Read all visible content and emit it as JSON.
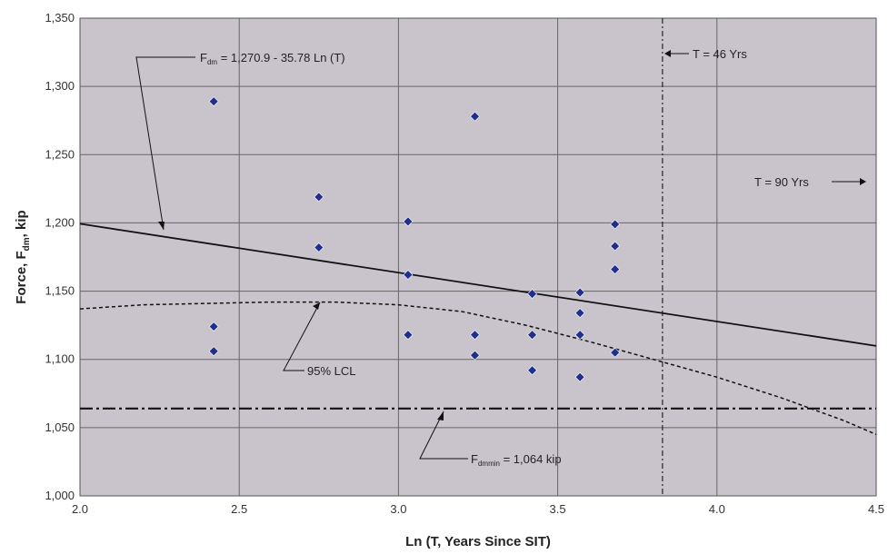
{
  "chart_data": {
    "type": "scatter",
    "xlabel": "Ln (T, Years Since SIT)",
    "ylabel": {
      "pre": "Force, F",
      "sub": "dm",
      "post": ", kip"
    },
    "xlim": [
      2.0,
      4.5
    ],
    "ylim": [
      1000,
      1350
    ],
    "x_ticks": [
      2.0,
      2.5,
      3.0,
      3.5,
      4.0,
      4.5
    ],
    "x_tick_labels": [
      "2.0",
      "2.5",
      "3.0",
      "3.5",
      "4.0",
      "4.5"
    ],
    "y_ticks": [
      1000,
      1050,
      1100,
      1150,
      1200,
      1250,
      1300,
      1350
    ],
    "y_tick_labels": [
      "1,000",
      "1,050",
      "1,100",
      "1,150",
      "1,200",
      "1,250",
      "1,300",
      "1,350"
    ],
    "grid": true,
    "plot_background": "#c9c4cc",
    "marker_color": "#1f2f8a",
    "points": [
      {
        "x": 2.42,
        "y": 1289
      },
      {
        "x": 2.42,
        "y": 1124
      },
      {
        "x": 2.42,
        "y": 1106
      },
      {
        "x": 2.75,
        "y": 1219
      },
      {
        "x": 2.75,
        "y": 1182
      },
      {
        "x": 3.03,
        "y": 1201
      },
      {
        "x": 3.03,
        "y": 1162
      },
      {
        "x": 3.03,
        "y": 1118
      },
      {
        "x": 3.24,
        "y": 1278
      },
      {
        "x": 3.24,
        "y": 1118
      },
      {
        "x": 3.24,
        "y": 1103
      },
      {
        "x": 3.42,
        "y": 1148
      },
      {
        "x": 3.42,
        "y": 1118
      },
      {
        "x": 3.42,
        "y": 1092
      },
      {
        "x": 3.57,
        "y": 1149
      },
      {
        "x": 3.57,
        "y": 1134
      },
      {
        "x": 3.57,
        "y": 1118
      },
      {
        "x": 3.57,
        "y": 1087
      },
      {
        "x": 3.68,
        "y": 1199
      },
      {
        "x": 3.68,
        "y": 1183
      },
      {
        "x": 3.68,
        "y": 1166
      },
      {
        "x": 3.68,
        "y": 1105
      }
    ],
    "regression": {
      "intercept": 1270.9,
      "slope": -35.78,
      "x": [
        2.0,
        4.5
      ]
    },
    "lcl_curve": {
      "x": [
        2.0,
        2.2,
        2.4,
        2.6,
        2.8,
        3.0,
        3.2,
        3.4,
        3.6,
        3.8,
        4.0,
        4.2,
        4.4,
        4.5
      ],
      "y": [
        1137,
        1140,
        1141,
        1142,
        1142,
        1140,
        1135,
        1125,
        1113,
        1100,
        1087,
        1072,
        1055,
        1045
      ]
    },
    "min_line_y": 1064,
    "vertical_line_x": 3.829,
    "annotations": {
      "equation": {
        "pre": "F",
        "sub": "dm",
        "post": " = 1,270.9 - 35.78 Ln (T)"
      },
      "lcl": "95% LCL",
      "fmin": {
        "pre": "F",
        "sub": "dmmin",
        "post": " = 1,064 kip"
      },
      "t46": "T = 46 Yrs",
      "t90": "T = 90 Yrs"
    }
  }
}
